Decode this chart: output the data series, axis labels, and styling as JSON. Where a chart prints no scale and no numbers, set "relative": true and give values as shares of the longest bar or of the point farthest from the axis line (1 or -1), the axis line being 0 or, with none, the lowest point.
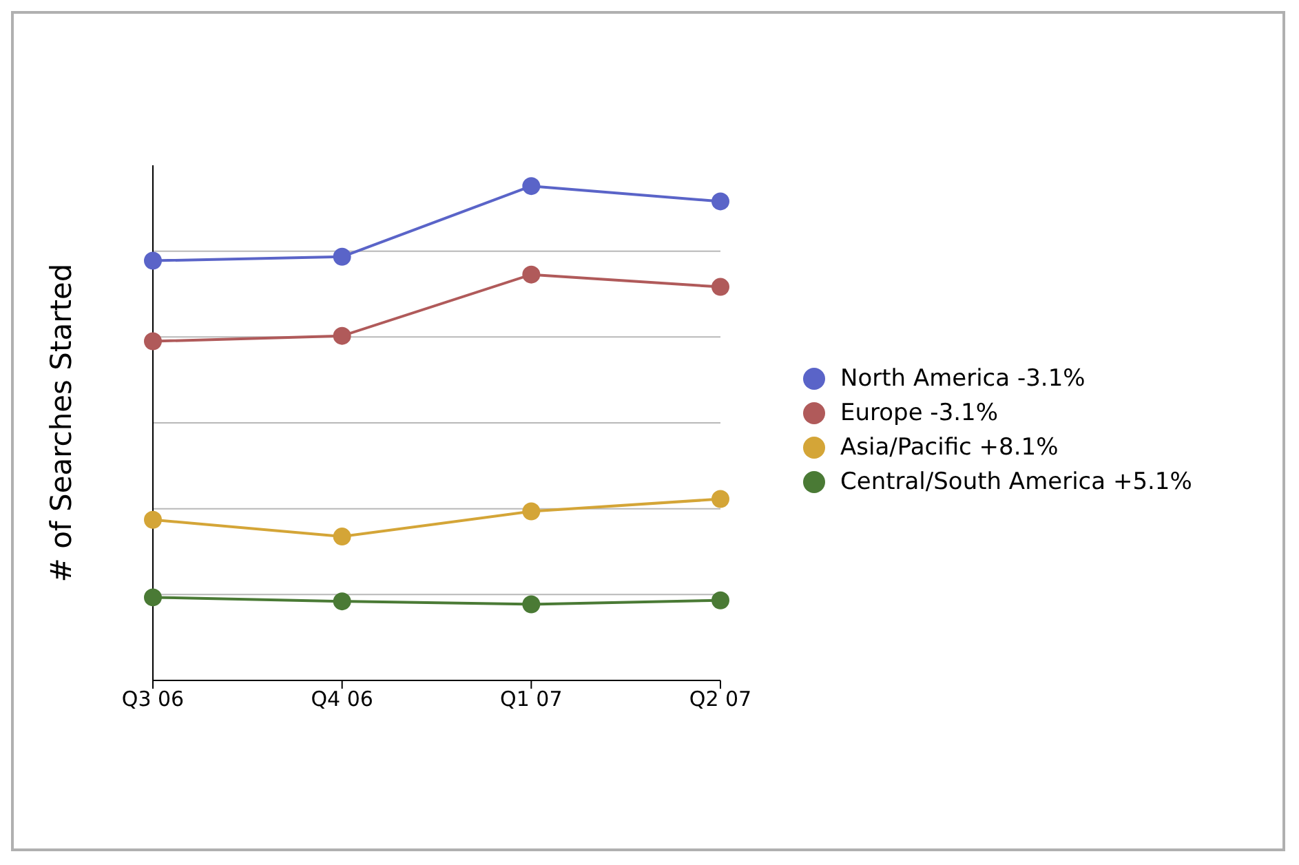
{
  "chart_data": {
    "type": "line",
    "ylabel": "# of Searches Started",
    "categories": [
      "Q3 06",
      "Q4 06",
      "Q1 07",
      "Q2 07"
    ],
    "relative": true,
    "grid": "y",
    "legend": "right",
    "marker": "circle",
    "line_style": "solid",
    "series": [
      {
        "name": "North America -3.1%",
        "color": "#5a64c8",
        "values": [
          0.849,
          0.857,
          1,
          0.969
        ]
      },
      {
        "name": "Europe -3.1%",
        "color": "#b05a5a",
        "values": [
          0.686,
          0.697,
          0.821,
          0.796
        ]
      },
      {
        "name": "Asia/Pacific +8.1%",
        "color": "#d4a537",
        "values": [
          0.325,
          0.291,
          0.342,
          0.367
        ]
      },
      {
        "name": "Central/South America +5.1%",
        "color": "#4a7a35",
        "values": [
          0.168,
          0.16,
          0.154,
          0.162
        ]
      }
    ]
  }
}
